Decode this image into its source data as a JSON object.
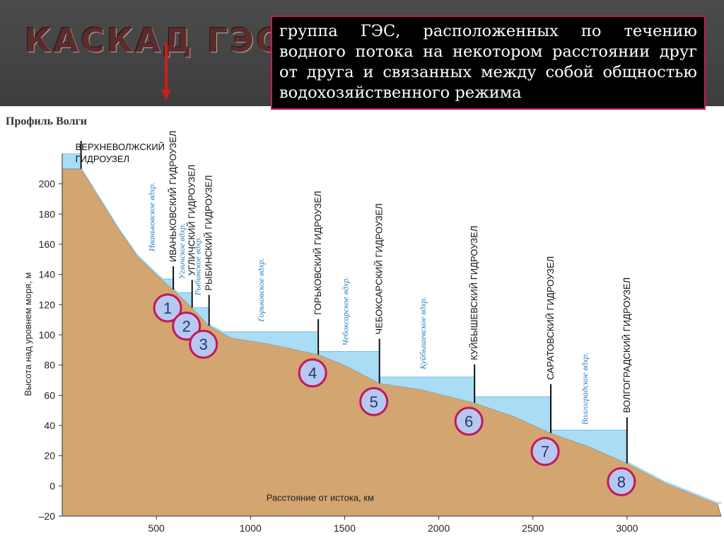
{
  "header": {
    "title": "КАСКАД ГЭС",
    "definition": "группа ГЭС, расположенных по течению водного потока на некотором расстоянии друг от друга и связанных между собой общностью водохозяйственного режима"
  },
  "figure": {
    "title": "Профиль Волги",
    "ylabel": "Высота над уровнем моря, м",
    "xlabel": "Расстояние от истока, км",
    "y_ticks": [
      "200",
      "180",
      "160",
      "140",
      "120",
      "100",
      "80",
      "60",
      "40",
      "20",
      "0",
      "–20"
    ],
    "x_ticks": [
      "500",
      "1000",
      "1500",
      "2000",
      "2500",
      "3000"
    ]
  },
  "chart_data": {
    "type": "area",
    "title": "Профиль Волги",
    "xlabel": "Расстояние от истока, км",
    "ylabel": "Высота над уровнем моря, м",
    "xlim": [
      0,
      3500
    ],
    "ylim": [
      -20,
      220
    ],
    "colors": {
      "ground": "#d2a571",
      "water": "#a9dcf5",
      "water_edge": "#4aa3d8"
    },
    "dams": [
      {
        "n": "",
        "name": "ВЕРХНЕВОЛЖСКИЙ ГИДРОУЗЕЛ",
        "x": 100,
        "level": 220,
        "base": 210
      },
      {
        "n": "1",
        "name": "ИВАНЬКОВСКИЙ ГИДРОУЗЕЛ",
        "x": 590,
        "level": 137,
        "base": 128
      },
      {
        "n": "2",
        "name": "УГЛИЧСКИЙ ГИДРОУЗЕЛ",
        "x": 690,
        "level": 128,
        "base": 117
      },
      {
        "n": "3",
        "name": "РЫБИНСКИЙ ГИДРОУЗЕЛ",
        "x": 780,
        "level": 118,
        "base": 102
      },
      {
        "n": "4",
        "name": "ГОРЬКОВСКИЙ ГИДРОУЗЕЛ",
        "x": 1360,
        "level": 102,
        "base": 88
      },
      {
        "n": "5",
        "name": "ЧЕБОКСАРСКИЙ ГИДРОУЗЕЛ",
        "x": 1685,
        "level": 89,
        "base": 70
      },
      {
        "n": "6",
        "name": "КУЙБЫШЕВСКИЙ ГИДРОУЗЕЛ",
        "x": 2190,
        "level": 72,
        "base": 58
      },
      {
        "n": "7",
        "name": "САРАТОВСКИЙ ГИДРОУЗЕЛ",
        "x": 2595,
        "level": 59,
        "base": 37
      },
      {
        "n": "8",
        "name": "ВОЛГОГРАДСКИЙ ГИДРОУЗЕЛ",
        "x": 3000,
        "level": 37,
        "base": 16
      }
    ],
    "reservoirs": [
      {
        "name": "Иваньковское вдхр.",
        "x": 490
      },
      {
        "name": "Угличское вдхр.",
        "x": 650
      },
      {
        "name": "Рыбинское вдхр.",
        "x": 735
      },
      {
        "name": "Горьковское вдхр.",
        "x": 1070
      },
      {
        "name": "Чебоксарское вдхр.",
        "x": 1520
      },
      {
        "name": "Куйбышевское вдхр.",
        "x": 1930
      },
      {
        "name": "Волгоградское вдхр.",
        "x": 2790
      }
    ],
    "riverbed": [
      [
        0,
        210
      ],
      [
        100,
        210
      ],
      [
        200,
        190
      ],
      [
        300,
        170
      ],
      [
        400,
        152
      ],
      [
        500,
        140
      ],
      [
        590,
        130
      ],
      [
        690,
        118
      ],
      [
        780,
        106
      ],
      [
        900,
        98
      ],
      [
        1100,
        94
      ],
      [
        1360,
        87
      ],
      [
        1500,
        80
      ],
      [
        1685,
        68
      ],
      [
        1900,
        64
      ],
      [
        2190,
        55
      ],
      [
        2400,
        46
      ],
      [
        2595,
        35
      ],
      [
        2800,
        26
      ],
      [
        3000,
        15
      ],
      [
        3200,
        2
      ],
      [
        3480,
        -12
      ]
    ]
  }
}
